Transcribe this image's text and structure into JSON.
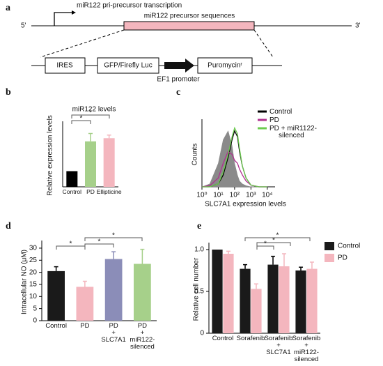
{
  "diagram": {
    "panel_label": "a",
    "transcription": "miR122 pri-precursor transcription",
    "five": "5'",
    "three": "3'",
    "precursor": "miR122 precursor sequences",
    "ires": "IRES",
    "gfp": "GFP/Firefly Luc",
    "promoter": "EF1 promoter",
    "puromycin": "Puromycinʳ"
  },
  "chart_data": [
    {
      "type": "bar",
      "panel_label": "b",
      "title": "miR122 levels",
      "y_label": "Relative expression levels",
      "categories": [
        "Control",
        "PD",
        "Ellipticine"
      ],
      "values": [
        1.0,
        2.9,
        3.1
      ],
      "errors": [
        null,
        0.5,
        0.2
      ],
      "colors": [
        "#000000",
        "#a6d08a",
        "#f4b6be"
      ],
      "ylim": [
        0,
        4
      ],
      "annotations": [
        "*",
        "*"
      ]
    },
    {
      "type": "line",
      "panel_label": "c",
      "y_label": "Counts",
      "x_label": "SLC7A1 expression levels",
      "xscale": "log",
      "xlim": [
        1,
        30000
      ],
      "xticks": [
        {
          "value": 1,
          "label": "10⁰"
        },
        {
          "value": 10,
          "label": "10¹"
        },
        {
          "value": 100,
          "label": "10²"
        },
        {
          "value": 1000,
          "label": "10³"
        },
        {
          "value": 10000,
          "label": "10⁴"
        }
      ],
      "ylim": [
        0,
        110
      ],
      "x": [
        1,
        3,
        10,
        20,
        40,
        70,
        100,
        150,
        200,
        300,
        500,
        1000,
        3000,
        10000
      ],
      "series": [
        {
          "color": "#8a8a8a",
          "filled": true,
          "values": [
            0,
            5,
            40,
            80,
            95,
            70,
            40,
            20,
            10,
            5,
            2,
            0,
            0,
            0
          ]
        },
        {
          "name": "Control",
          "color": "#000000",
          "values": [
            0,
            0,
            5,
            20,
            50,
            80,
            95,
            85,
            60,
            35,
            15,
            3,
            0,
            0
          ]
        },
        {
          "name": "PD",
          "color": "#b0308f",
          "values": [
            0,
            2,
            15,
            40,
            60,
            55,
            45,
            40,
            30,
            20,
            10,
            3,
            0,
            0
          ]
        },
        {
          "name": "PD + miR1122-\nsilenced",
          "color": "#6ccb4f",
          "values": [
            0,
            0,
            5,
            25,
            55,
            85,
            100,
            90,
            65,
            35,
            15,
            3,
            0,
            0
          ]
        }
      ]
    },
    {
      "type": "bar",
      "panel_label": "d",
      "y_label": "Intracellular NO (μM)",
      "categories": [
        "Control",
        "PD",
        "PD\n+\nSLC7A1",
        "PD\n+\nmiR122-\nsilenced"
      ],
      "values": [
        20.5,
        14,
        25.5,
        23.5
      ],
      "errors": [
        1.8,
        2.3,
        3,
        6
      ],
      "colors": [
        "#1a1a1a",
        "#f4b6be",
        "#8b8db8",
        "#a6d08a"
      ],
      "ylim": [
        0,
        32
      ],
      "yticks": [
        0,
        5,
        10,
        15,
        20,
        25,
        30
      ],
      "annotations": [
        "*",
        "*",
        "*"
      ]
    },
    {
      "type": "bar",
      "panel_label": "e",
      "y_label": "Relative cell number",
      "categories": [
        "Control",
        "Sorafenib",
        "Sorafenib\n+\nSLC7A1",
        "Sorafenib\n+\nmiR122-\nsilenced"
      ],
      "ylim": [
        0,
        1.05
      ],
      "yticks": [
        0,
        {
          "value": 0.5,
          "label": "0.5"
        },
        {
          "value": 1,
          "label": "1.0"
        }
      ],
      "series": [
        {
          "name": "Control",
          "color": "#1a1a1a",
          "values": [
            1.0,
            0.77,
            0.82,
            0.75
          ],
          "errors": [
            0,
            0.05,
            0.1,
            0.04
          ]
        },
        {
          "name": "PD",
          "color": "#f4b6be",
          "values": [
            0.95,
            0.53,
            0.8,
            0.77
          ],
          "errors": [
            0.03,
            0.06,
            0.15,
            0.08
          ]
        }
      ],
      "annotations": [
        "*",
        "*",
        "*"
      ]
    }
  ]
}
